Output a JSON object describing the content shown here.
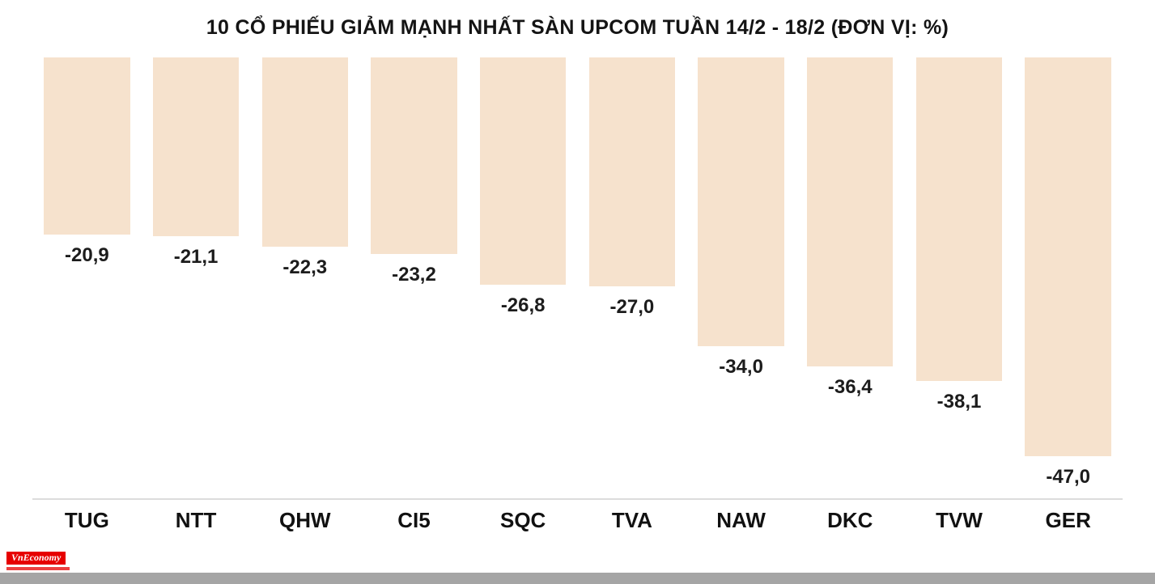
{
  "title": "10 CỔ PHIẾU GIẢM MẠNH NHẤT SÀN UPCOM TUẦN 14/2 - 18/2 (ĐƠN VỊ: %)",
  "chart_data": {
    "type": "bar",
    "title": "10 CỔ PHIẾU GIẢM MẠNH NHẤT SÀN UPCOM TUẦN 14/2 - 18/2 (ĐƠN VỊ: %)",
    "unit": "%",
    "orientation": "vertical-hanging-from-top",
    "categories": [
      "TUG",
      "NTT",
      "QHW",
      "CI5",
      "SQC",
      "TVA",
      "NAW",
      "DKC",
      "TVW",
      "GER"
    ],
    "values": [
      -20.9,
      -21.1,
      -22.3,
      -23.2,
      -26.8,
      -27.0,
      -34.0,
      -36.4,
      -38.1,
      -47.0
    ],
    "value_labels": [
      "-20,9",
      "-21,1",
      "-22,3",
      "-23,2",
      "-26,8",
      "-27,0",
      "-34,0",
      "-36,4",
      "-38,1",
      "-47,0"
    ],
    "ylim": [
      -47,
      0
    ],
    "grid": false,
    "legend": "none",
    "bar_color": "#f6e2cd",
    "label_color": "#1c1c1c",
    "baseline_color": "#dcdcdc"
  },
  "footer": {
    "logo_text": "VnEconomy"
  }
}
